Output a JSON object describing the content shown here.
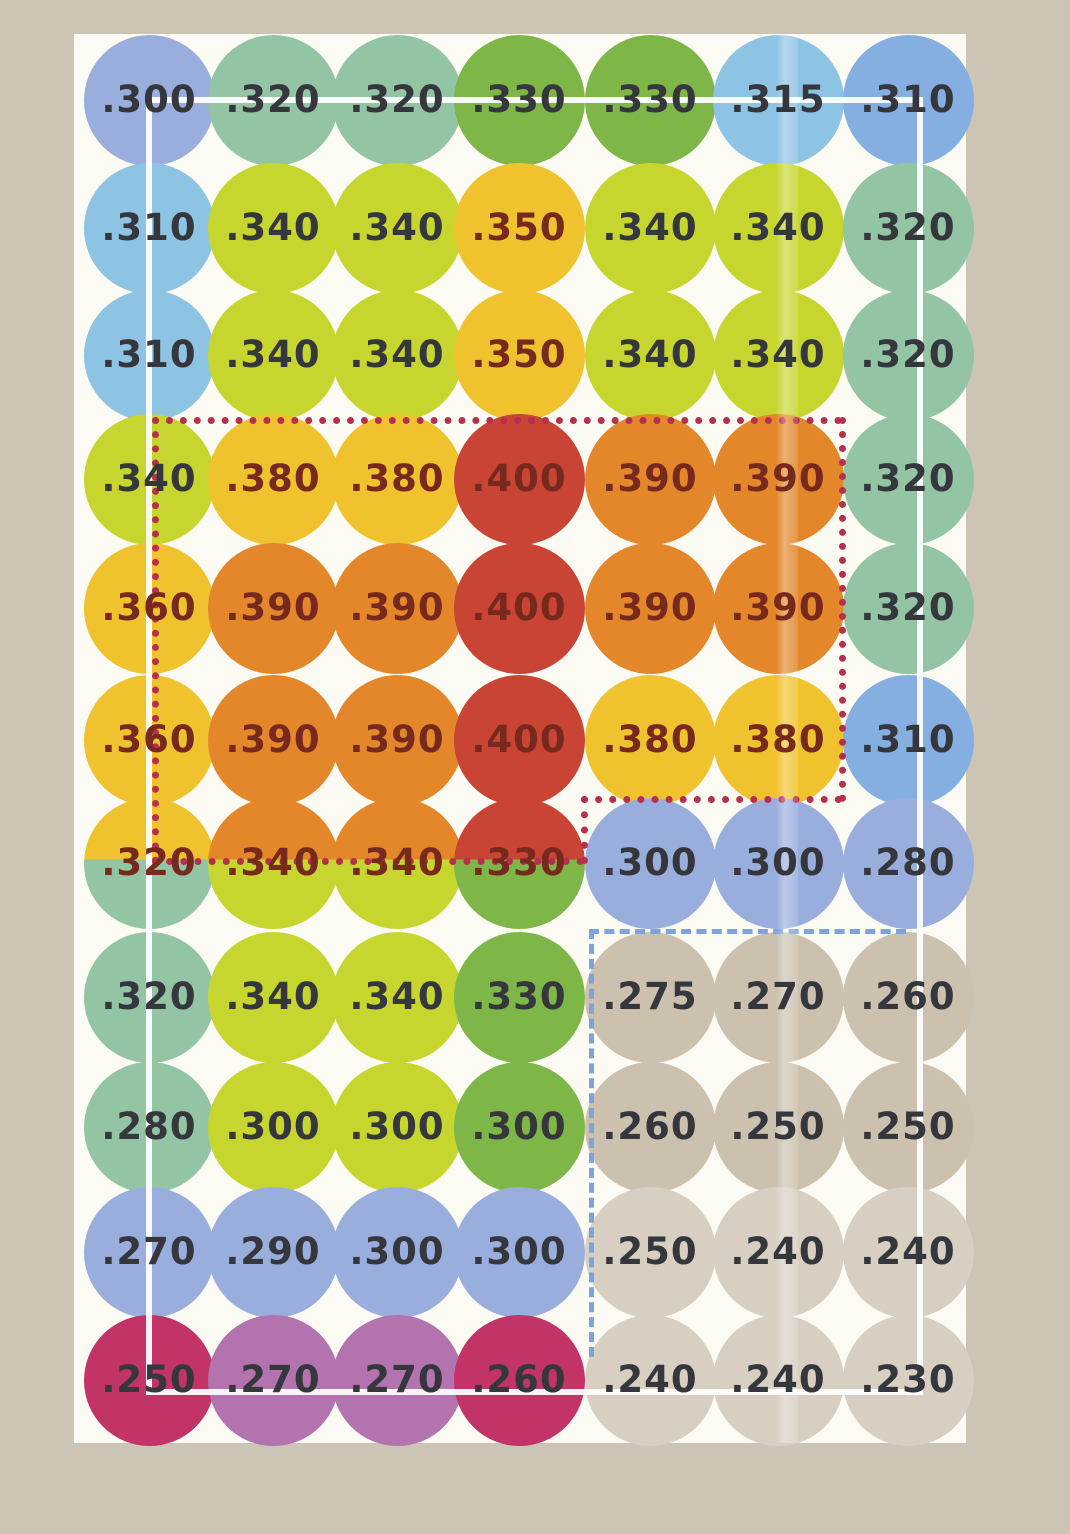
{
  "palette": {
    "periwinkle": "#9aaede",
    "skyblue": "#8dc3e3",
    "blue": "#85aee1",
    "sage": "#93c4a4",
    "green": "#7eb747",
    "lime": "#c7d62f",
    "gold": "#f0c32e",
    "orange": "#e3872a",
    "red": "#c94434",
    "tan": "#cbc1ae",
    "lighttan": "#d7cfc2",
    "magenta": "#c23368",
    "orchid": "#b273af"
  },
  "text_colors": {
    "normal": "#36373c",
    "hot": "#76291c"
  },
  "lines": {
    "hot_zone_border": "#b5304c",
    "dashed_zone_border": "#7da2dc",
    "reference_rect": "#ffffff"
  },
  "background": {
    "page": "#ccc4b4",
    "panel": "#fbfaf3"
  },
  "grid": {
    "rows": [
      {
        "cells": [
          {
            "v": ".300",
            "c": "periwinkle"
          },
          {
            "v": ".320",
            "c": "sage"
          },
          {
            "v": ".320",
            "c": "sage"
          },
          {
            "v": ".330",
            "c": "green"
          },
          {
            "v": ".330",
            "c": "green"
          },
          {
            "v": ".315",
            "c": "skyblue"
          },
          {
            "v": ".310",
            "c": "blue"
          }
        ]
      },
      {
        "cells": [
          {
            "v": ".310",
            "c": "skyblue"
          },
          {
            "v": ".340",
            "c": "lime"
          },
          {
            "v": ".340",
            "c": "lime"
          },
          {
            "v": ".350",
            "c": "gold"
          },
          {
            "v": ".340",
            "c": "lime"
          },
          {
            "v": ".340",
            "c": "lime"
          },
          {
            "v": ".320",
            "c": "sage"
          }
        ]
      },
      {
        "cells": [
          {
            "v": ".310",
            "c": "skyblue"
          },
          {
            "v": ".340",
            "c": "lime"
          },
          {
            "v": ".340",
            "c": "lime"
          },
          {
            "v": ".350",
            "c": "gold"
          },
          {
            "v": ".340",
            "c": "lime"
          },
          {
            "v": ".340",
            "c": "lime"
          },
          {
            "v": ".320",
            "c": "sage"
          }
        ]
      },
      {
        "cells": [
          {
            "v": ".340",
            "c": "lime"
          },
          {
            "v": ".380",
            "c": "gold"
          },
          {
            "v": ".380",
            "c": "gold"
          },
          {
            "v": ".400",
            "c": "red"
          },
          {
            "v": ".390",
            "c": "orange"
          },
          {
            "v": ".390",
            "c": "orange"
          },
          {
            "v": ".320",
            "c": "sage"
          }
        ]
      },
      {
        "cells": [
          {
            "v": ".360",
            "c": "gold"
          },
          {
            "v": ".390",
            "c": "orange"
          },
          {
            "v": ".390",
            "c": "orange"
          },
          {
            "v": ".400",
            "c": "red"
          },
          {
            "v": ".390",
            "c": "orange"
          },
          {
            "v": ".390",
            "c": "orange"
          },
          {
            "v": ".320",
            "c": "sage"
          }
        ]
      },
      {
        "cells": [
          {
            "v": ".360",
            "c": "gold"
          },
          {
            "v": ".390",
            "c": "orange"
          },
          {
            "v": ".390",
            "c": "orange"
          },
          {
            "v": ".400",
            "c": "red"
          },
          {
            "v": ".380",
            "c": "gold"
          },
          {
            "v": ".380",
            "c": "gold"
          },
          {
            "v": ".310",
            "c": "blue"
          }
        ]
      },
      {
        "cells": [
          {
            "v": ".320",
            "c": "sage",
            "top": "gold"
          },
          {
            "v": ".340",
            "c": "lime",
            "top": "orange"
          },
          {
            "v": ".340",
            "c": "lime",
            "top": "orange"
          },
          {
            "v": ".330",
            "c": "green",
            "top": "red"
          },
          {
            "v": ".300",
            "c": "periwinkle"
          },
          {
            "v": ".300",
            "c": "periwinkle"
          },
          {
            "v": ".280",
            "c": "periwinkle"
          }
        ]
      },
      {
        "cells": [
          {
            "v": ".320",
            "c": "sage"
          },
          {
            "v": ".340",
            "c": "lime"
          },
          {
            "v": ".340",
            "c": "lime"
          },
          {
            "v": ".330",
            "c": "green"
          },
          {
            "v": ".275",
            "c": "tan"
          },
          {
            "v": ".270",
            "c": "tan"
          },
          {
            "v": ".260",
            "c": "tan"
          }
        ]
      },
      {
        "cells": [
          {
            "v": ".280",
            "c": "sage"
          },
          {
            "v": ".300",
            "c": "lime"
          },
          {
            "v": ".300",
            "c": "lime"
          },
          {
            "v": ".300",
            "c": "green"
          },
          {
            "v": ".260",
            "c": "tan"
          },
          {
            "v": ".250",
            "c": "tan"
          },
          {
            "v": ".250",
            "c": "tan"
          }
        ]
      },
      {
        "cells": [
          {
            "v": ".270",
            "c": "periwinkle"
          },
          {
            "v": ".290",
            "c": "periwinkle"
          },
          {
            "v": ".300",
            "c": "periwinkle"
          },
          {
            "v": ".300",
            "c": "periwinkle"
          },
          {
            "v": ".250",
            "c": "lighttan"
          },
          {
            "v": ".240",
            "c": "lighttan"
          },
          {
            "v": ".240",
            "c": "lighttan"
          }
        ]
      },
      {
        "cells": [
          {
            "v": ".250",
            "c": "magenta"
          },
          {
            "v": ".270",
            "c": "orchid"
          },
          {
            "v": ".270",
            "c": "orchid"
          },
          {
            "v": ".260",
            "c": "magenta"
          },
          {
            "v": ".240",
            "c": "lighttan"
          },
          {
            "v": ".240",
            "c": "lighttan"
          },
          {
            "v": ".230",
            "c": "lighttan"
          }
        ]
      }
    ]
  },
  "chart_data": {
    "type": "heatmap",
    "rows": 11,
    "cols": 7,
    "values": [
      [
        0.3,
        0.32,
        0.32,
        0.33,
        0.33,
        0.315,
        0.31
      ],
      [
        0.31,
        0.34,
        0.34,
        0.35,
        0.34,
        0.34,
        0.32
      ],
      [
        0.31,
        0.34,
        0.34,
        0.35,
        0.34,
        0.34,
        0.32
      ],
      [
        0.34,
        0.38,
        0.38,
        0.4,
        0.39,
        0.39,
        0.32
      ],
      [
        0.36,
        0.39,
        0.39,
        0.4,
        0.39,
        0.39,
        0.32
      ],
      [
        0.36,
        0.39,
        0.39,
        0.4,
        0.38,
        0.38,
        0.31
      ],
      [
        0.32,
        0.34,
        0.34,
        0.33,
        0.3,
        0.3,
        0.28
      ],
      [
        0.32,
        0.34,
        0.34,
        0.33,
        0.275,
        0.27,
        0.26
      ],
      [
        0.28,
        0.3,
        0.3,
        0.3,
        0.26,
        0.25,
        0.25
      ],
      [
        0.27,
        0.29,
        0.3,
        0.3,
        0.25,
        0.24,
        0.24
      ],
      [
        0.25,
        0.27,
        0.27,
        0.26,
        0.24,
        0.24,
        0.23
      ]
    ],
    "title": "",
    "legend": "none",
    "annotations": [
      "red dotted outline enclosing the high-value region (rows 4-7, columns 1-6)",
      "blue dashed outline around the lower-right low-value region (rows 8-11, columns 5-7)",
      "white reference rectangle connecting the four corner dots through the value text"
    ]
  }
}
